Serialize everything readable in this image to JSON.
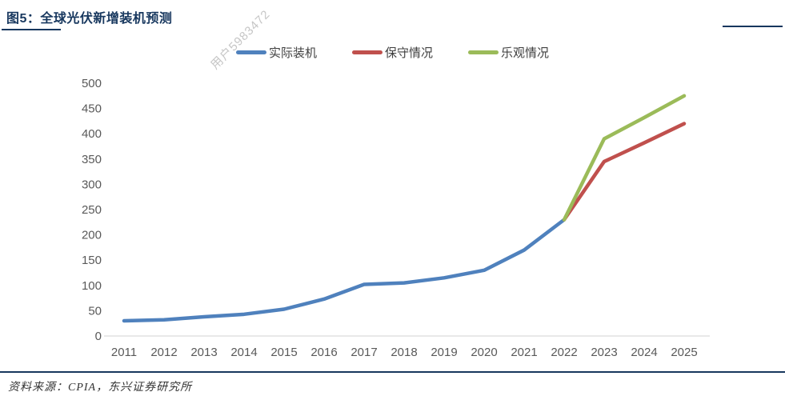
{
  "figure": {
    "title": "图5：全球光伏新增装机预测",
    "source": "资料来源：CPIA，东兴证券研究所",
    "watermark": "用户5983472"
  },
  "colors": {
    "accent_navy": "#17375E",
    "axis_text": "#595959",
    "axis_line": "#D9D9D9",
    "legend_text": "#3F3F3F"
  },
  "chart_data": {
    "type": "line",
    "x": [
      "2011",
      "2012",
      "2013",
      "2014",
      "2015",
      "2016",
      "2017",
      "2018",
      "2019",
      "2020",
      "2021",
      "2022",
      "2023",
      "2024",
      "2025"
    ],
    "ylim": [
      0,
      500
    ],
    "ytick_step": 50,
    "yticks": [
      0,
      50,
      100,
      150,
      200,
      250,
      300,
      350,
      400,
      450,
      500
    ],
    "grid": false,
    "legend_position": "top",
    "series": [
      {
        "name": "实际装机",
        "color": "#4F81BD",
        "start_index": 0,
        "values": [
          30,
          32,
          38,
          43,
          53,
          73,
          102,
          105,
          115,
          130,
          170,
          230
        ]
      },
      {
        "name": "保守情况",
        "color": "#C0504D",
        "start_index": 11,
        "values": [
          230,
          345,
          382,
          420
        ]
      },
      {
        "name": "乐观情况",
        "color": "#9BBB59",
        "start_index": 11,
        "values": [
          230,
          390,
          432,
          475
        ]
      }
    ]
  }
}
